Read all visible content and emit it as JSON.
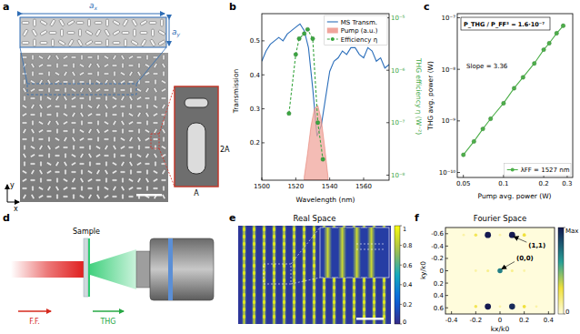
{
  "figure": {
    "panel_labels": [
      "a",
      "b",
      "c",
      "d",
      "e",
      "f"
    ],
    "a": {
      "lattice_labels": [
        {
          "main": "a",
          "sub": "x"
        },
        {
          "main": "a",
          "sub": "y"
        }
      ],
      "zoom_labels": [
        "2A",
        "A"
      ],
      "axis_labels": [
        "y",
        "x"
      ]
    },
    "d": {
      "sample": "Sample",
      "beam_labels": [
        "F.F.",
        "THG"
      ]
    },
    "e": {
      "title": "Real Space",
      "colorbar": {
        "range": [
          0,
          1
        ],
        "ticks": [
          0,
          0.2,
          0.4,
          0.6,
          0.8,
          1
        ]
      }
    }
  },
  "chart_data": [
    {
      "type": "line",
      "x_label": "Wavelength (nm)",
      "y_label": "Transmission",
      "y2_label": "THG efficiency η (W⁻²)",
      "xlim": [
        1500,
        1575
      ],
      "xticks": [
        1500,
        1520,
        1540,
        1560
      ],
      "ylim": [
        0.09,
        0.58
      ],
      "yticks": [
        0.2,
        0.3,
        0.4,
        0.5
      ],
      "y2lim": [
        8e-09,
        1.2e-05
      ],
      "y2ticks": [
        {
          "value": 1e-08,
          "label": "10⁻⁸"
        },
        {
          "value": 1e-07,
          "label": "10⁻⁷"
        },
        {
          "value": 1e-06,
          "label": "10⁻⁶"
        },
        {
          "value": 1e-05,
          "label": "10⁻⁵"
        }
      ],
      "log": "y2",
      "grid": false,
      "legend": "upper right",
      "series": [
        {
          "name": "MS Transm.",
          "type": "line",
          "color": "#2c6fbb",
          "line_style": "solid",
          "x": [
            1500,
            1502.5,
            1505,
            1507.5,
            1510,
            1512.5,
            1515,
            1517.5,
            1520,
            1522.5,
            1525,
            1527.5,
            1530,
            1532.5,
            1535,
            1537.5,
            1540,
            1542.5,
            1545,
            1547.5,
            1550,
            1552.5,
            1555,
            1557.5,
            1560,
            1562.5,
            1565,
            1567.5,
            1570,
            1572.5,
            1575
          ],
          "values": [
            0.44,
            0.47,
            0.49,
            0.5,
            0.51,
            0.5,
            0.52,
            0.53,
            0.54,
            0.55,
            0.53,
            0.48,
            0.36,
            0.22,
            0.25,
            0.33,
            0.41,
            0.44,
            0.45,
            0.47,
            0.46,
            0.48,
            0.48,
            0.46,
            0.45,
            0.48,
            0.47,
            0.44,
            0.45,
            0.42,
            0.43
          ]
        },
        {
          "name": "Pump (a.u.)",
          "type": "area",
          "color": "#f0a59c",
          "x": [
            1525,
            1527,
            1529,
            1531,
            1533,
            1535,
            1537,
            1539
          ],
          "values": [
            0.1,
            0.17,
            0.25,
            0.3,
            0.31,
            0.27,
            0.19,
            0.1
          ]
        },
        {
          "name": "Efficiency η",
          "type": "line",
          "color": "#3aa641",
          "line_style": "dashed",
          "marker": "circle",
          "axis": "y2",
          "x": [
            1516,
            1520,
            1522,
            1525,
            1527,
            1530,
            1533,
            1536
          ],
          "values": [
            1.5e-07,
            2e-06,
            4e-06,
            5e-06,
            6e-06,
            4e-06,
            1e-07,
            2e-08
          ]
        }
      ]
    },
    {
      "type": "line",
      "x_label": "Pump avg. power (W)",
      "y_label": "THG avg. power (W)",
      "xlim": [
        0.045,
        0.33
      ],
      "xticks": [
        0.05,
        0.1,
        0.2,
        0.3
      ],
      "ylim": [
        8e-11,
        1.2e-07
      ],
      "yticks": [
        {
          "value": 1e-10,
          "label": "10⁻¹⁰"
        },
        {
          "value": 1e-09,
          "label": "10⁻⁹"
        },
        {
          "value": 1e-08,
          "label": "10⁻⁸"
        },
        {
          "value": 1e-07,
          "label": "10⁻⁷"
        }
      ],
      "log": true,
      "grid": false,
      "legend": "lower right",
      "annotations": [
        {
          "text": "P_THG / P_FF³ = 1.6·10⁻⁷"
        },
        {
          "text": "Slope = 3.36"
        }
      ],
      "series": [
        {
          "name": "λFF = 1527 nm",
          "color": "#4daf4a",
          "marker": "circle",
          "line_style": "solid",
          "x": [
            0.05,
            0.06,
            0.07,
            0.08,
            0.1,
            0.12,
            0.14,
            0.17,
            0.2,
            0.22,
            0.25,
            0.28
          ],
          "values": [
            2.2e-10,
            4e-10,
            7e-10,
            1.1e-09,
            2.2e-09,
            4.3e-09,
            7e-09,
            1.3e-08,
            2.4e-08,
            3.2e-08,
            5e-08,
            7e-08
          ]
        }
      ]
    },
    {
      "type": "scatter",
      "title": "Fourier Space",
      "x_label": "kx/k0",
      "y_label": "ky/k0",
      "xlim": [
        -0.45,
        0.45
      ],
      "xticks": [
        -0.4,
        -0.2,
        0,
        0.2,
        0.4
      ],
      "ylim": [
        0.7,
        -0.7
      ],
      "yticks": [
        -0.6,
        -0.4,
        -0.2,
        0,
        0.2,
        0.4,
        0.6
      ],
      "grid": false,
      "colorbar": {
        "range": [
          0,
          1
        ],
        "ticks": [
          {
            "value": 0,
            "label": "0"
          },
          {
            "value": 1,
            "label": "Max"
          }
        ]
      },
      "annotations": [
        {
          "text": "(1,1)",
          "x": 0.1,
          "y": -0.58
        },
        {
          "text": "(0,0)",
          "x": 0,
          "y": 0
        }
      ],
      "series": [
        {
          "marker": "circle",
          "x": [
            -0.1,
            0.1,
            -0.1,
            0.1,
            0,
            -0.2,
            0.2,
            -0.2,
            0.2,
            -0.1,
            0.1,
            0.3,
            -0.3,
            0.2,
            -0.2,
            0,
            0
          ],
          "values": [
            -0.58,
            -0.58,
            0.58,
            0.58,
            0,
            -0.58,
            -0.58,
            0.58,
            0.58,
            0,
            0,
            0.58,
            -0.58,
            0,
            0,
            -0.58,
            0.58
          ],
          "intensity": [
            1,
            1,
            1,
            0.95,
            0.7,
            0.25,
            0.3,
            0.25,
            0.3,
            0.15,
            0.15,
            0.1,
            0.1,
            0.1,
            0.1,
            0.1,
            0.1
          ]
        }
      ]
    }
  ]
}
